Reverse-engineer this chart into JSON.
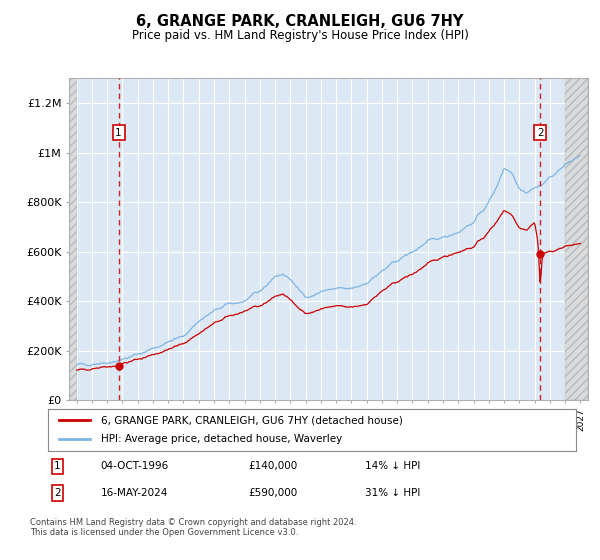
{
  "title": "6, GRANGE PARK, CRANLEIGH, GU6 7HY",
  "subtitle": "Price paid vs. HM Land Registry's House Price Index (HPI)",
  "legend_line1": "6, GRANGE PARK, CRANLEIGH, GU6 7HY (detached house)",
  "legend_line2": "HPI: Average price, detached house, Waverley",
  "sale1_date": "04-OCT-1996",
  "sale1_price": 140000,
  "sale1_label": "1",
  "sale1_pct": "14% ↓ HPI",
  "sale2_date": "16-MAY-2024",
  "sale2_price": 590000,
  "sale2_label": "2",
  "sale2_pct": "31% ↓ HPI",
  "note": "Contains HM Land Registry data © Crown copyright and database right 2024.\nThis data is licensed under the Open Government Licence v3.0.",
  "hpi_color": "#7eb4e3",
  "price_color": "#cc0000",
  "background_color": "#dce9f5",
  "grid_color": "#ffffff",
  "ylim": [
    0,
    1300000
  ],
  "yticks": [
    0,
    200000,
    400000,
    600000,
    800000,
    1000000,
    1200000
  ],
  "ytick_labels": [
    "£0",
    "£200K",
    "£400K",
    "£600K",
    "£800K",
    "£1M",
    "£1.2M"
  ],
  "sale1_year": 1996.75,
  "sale2_year": 2024.37,
  "xmin": 1993.5,
  "xmax": 2027.5,
  "hatch_left_end": 1994.0,
  "hatch_right_start": 2026.0
}
